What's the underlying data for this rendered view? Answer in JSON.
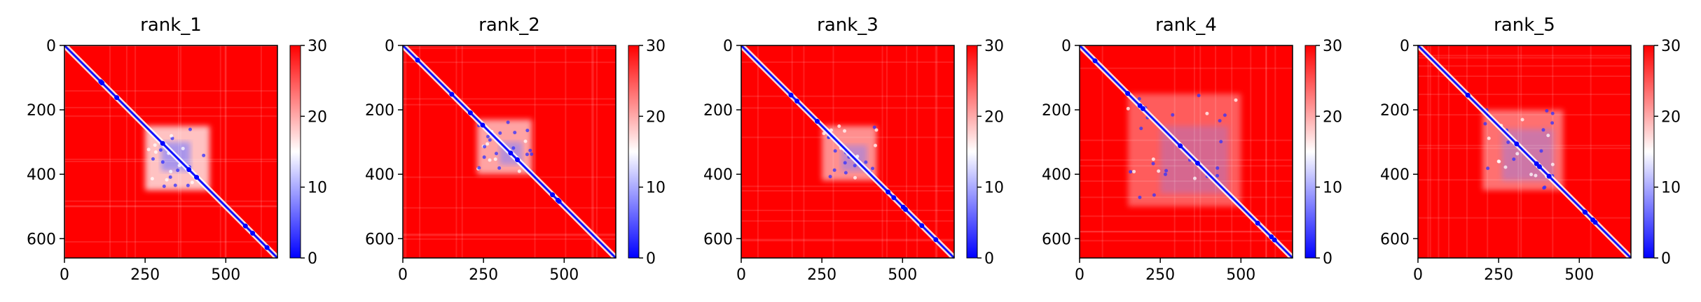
{
  "chart_data": {
    "type": "heatmap",
    "colormap": "bwr",
    "colormap_stops": [
      "#0000ff",
      "#ffffff",
      "#ff0000"
    ],
    "matrix_size": 660,
    "xlim": [
      0,
      660
    ],
    "ylim": [
      660,
      0
    ],
    "x_ticks": [
      0,
      250,
      500
    ],
    "y_ticks": [
      0,
      200,
      400,
      600
    ],
    "colorbar": {
      "range": [
        0,
        30
      ],
      "ticks": [
        0,
        10,
        20,
        30
      ]
    },
    "panels": [
      {
        "title": "rank_1",
        "blue_block": [
          250,
          450
        ],
        "block_strength": 0.95,
        "core": [
          300,
          390
        ]
      },
      {
        "title": "rank_2",
        "blue_block": [
          230,
          400
        ],
        "block_strength": 0.8,
        "core": [
          300,
          370
        ]
      },
      {
        "title": "rank_3",
        "blue_block": [
          250,
          420
        ],
        "block_strength": 0.7,
        "core": [
          310,
          390
        ]
      },
      {
        "title": "rank_4",
        "blue_block": [
          150,
          500
        ],
        "block_strength": 0.45,
        "core": [
          250,
          460
        ]
      },
      {
        "title": "rank_5",
        "blue_block": [
          200,
          450
        ],
        "block_strength": 0.55,
        "core": [
          260,
          420
        ]
      }
    ]
  }
}
